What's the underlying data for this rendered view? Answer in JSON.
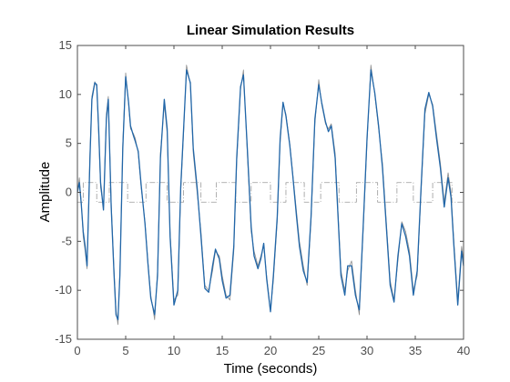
{
  "chart_data": {
    "type": "line",
    "title": "Linear Simulation Results",
    "xlabel": "Time (seconds)",
    "ylabel": "Amplitude",
    "xlim": [
      0,
      40
    ],
    "ylim": [
      -15,
      15
    ],
    "x_ticks": [
      "0",
      "5",
      "10",
      "15",
      "20",
      "25",
      "30",
      "35",
      "40"
    ],
    "y_ticks": [
      "-15",
      "-10",
      "-5",
      "0",
      "5",
      "10",
      "15"
    ],
    "grid": false,
    "legend": "none",
    "colors": {
      "output": "#2166a8",
      "reference": "#8c8c8c",
      "input": "#9a9a9a",
      "axes": "#4d4d4d"
    },
    "series": [
      {
        "role": "input",
        "style": "dash-dot",
        "x": [
          0,
          0.6,
          1.0,
          2.0,
          2.6,
          3.3,
          4.7,
          5.2,
          6.3,
          7.1,
          8.6,
          9.3,
          10.3,
          11.0,
          12.2,
          12.8,
          13.6,
          14.4,
          15.8,
          16.4,
          17.4,
          18.0,
          19.3,
          20.0,
          21.0,
          21.6,
          22.9,
          23.5,
          24.5,
          25.2,
          26.4,
          27.1,
          28.2,
          28.9,
          30.3,
          31.1,
          32.3,
          33.1,
          34.1,
          34.8,
          36.1,
          36.8,
          38.1,
          38.8,
          40
        ],
        "y": [
          -1,
          1,
          1,
          -1,
          -1,
          1,
          1,
          -1,
          -1,
          1,
          1,
          -1,
          -1,
          1,
          1,
          -1,
          -1,
          1,
          1,
          -1,
          -1,
          1,
          1,
          -1,
          -1,
          1,
          1,
          -1,
          -1,
          1,
          1,
          -1,
          -1,
          1,
          1,
          -1,
          -1,
          1,
          1,
          -1,
          -1,
          1,
          1,
          -1,
          -1
        ]
      },
      {
        "role": "reference",
        "style": "solid",
        "x": [
          0,
          0.2,
          0.4,
          0.6,
          0.8,
          1.0,
          1.3,
          1.5,
          1.8,
          2.0,
          2.2,
          2.4,
          2.7,
          3.0,
          3.2,
          3.5,
          3.8,
          4.0,
          4.2,
          4.4,
          4.7,
          5.0,
          5.3,
          5.5,
          5.8,
          6.0,
          6.3,
          6.6,
          7.0,
          7.3,
          7.6,
          8.0,
          8.3,
          8.6,
          9.0,
          9.3,
          9.6,
          10.0,
          10.4,
          10.7,
          11.0,
          11.3,
          11.7,
          12.0,
          12.4,
          12.8,
          13.2,
          13.6,
          14.0,
          14.3,
          14.7,
          15.0,
          15.4,
          15.8,
          16.2,
          16.5,
          16.9,
          17.2,
          17.6,
          18.0,
          18.3,
          18.7,
          19.0,
          19.3,
          19.6,
          20.0,
          20.3,
          20.7,
          21.0,
          21.3,
          21.6,
          22.0,
          22.3,
          22.7,
          23.0,
          23.4,
          23.8,
          24.2,
          24.6,
          25.0,
          25.3,
          25.7,
          26.0,
          26.3,
          26.7,
          27.0,
          27.3,
          27.7,
          28.0,
          28.4,
          28.8,
          29.2,
          29.6,
          30.0,
          30.4,
          30.8,
          31.2,
          31.6,
          32.0,
          32.4,
          32.8,
          33.2,
          33.6,
          34.0,
          34.4,
          34.8,
          35.2,
          35.6,
          36.0,
          36.4,
          36.8,
          37.2,
          37.6,
          38.0,
          38.4,
          38.7,
          39.0,
          39.4,
          39.8,
          40.0
        ],
        "y": [
          0,
          1.5,
          -1.0,
          -4.5,
          -6.0,
          -7.8,
          4.0,
          9.8,
          11.3,
          10.8,
          6.0,
          0.5,
          -1.5,
          8.0,
          9.8,
          -1.0,
          -8.0,
          -12.0,
          -13.5,
          -8.0,
          5.0,
          12.2,
          9.0,
          6.5,
          6.0,
          5.5,
          4.0,
          0.5,
          -3.0,
          -7.0,
          -10.5,
          -13.0,
          -8.0,
          4.0,
          9.0,
          6.0,
          -4.0,
          -11.0,
          -10.5,
          0.0,
          6.0,
          13.0,
          11.0,
          4.0,
          0.0,
          -4.0,
          -9.5,
          -10.0,
          -8.0,
          -6.0,
          -6.5,
          -8.5,
          -10.5,
          -11.0,
          -6.0,
          3.0,
          10.5,
          12.5,
          4.0,
          -4.0,
          -6.0,
          -7.5,
          -6.5,
          -5.5,
          -8.5,
          -12.0,
          -9.0,
          -3.0,
          5.0,
          9.0,
          8.0,
          5.0,
          2.0,
          -2.0,
          -5.0,
          -7.5,
          -9.5,
          -3.0,
          7.0,
          11.5,
          9.0,
          7.0,
          6.5,
          7.0,
          4.0,
          -2.0,
          -8.0,
          -10.0,
          -8.0,
          -7.0,
          -10.0,
          -12.5,
          -4.0,
          5.0,
          13.0,
          10.0,
          6.5,
          3.0,
          -3.0,
          -9.0,
          -11.0,
          -7.0,
          -3.0,
          -4.0,
          -6.0,
          -10.0,
          -8.5,
          0.0,
          8.0,
          10.0,
          9.0,
          6.0,
          3.0,
          -1.0,
          2.0,
          0.0,
          -5.0,
          -11.0,
          -5.5,
          -7.0
        ]
      },
      {
        "role": "output",
        "style": "solid",
        "x": [
          0,
          0.2,
          0.4,
          0.6,
          0.8,
          1.0,
          1.3,
          1.5,
          1.8,
          2.0,
          2.2,
          2.4,
          2.7,
          3.0,
          3.2,
          3.5,
          3.8,
          4.0,
          4.2,
          4.4,
          4.7,
          5.0,
          5.3,
          5.5,
          5.8,
          6.0,
          6.3,
          6.6,
          7.0,
          7.3,
          7.6,
          8.0,
          8.3,
          8.6,
          9.0,
          9.3,
          9.6,
          10.0,
          10.4,
          10.7,
          11.0,
          11.3,
          11.7,
          12.0,
          12.4,
          12.8,
          13.2,
          13.6,
          14.0,
          14.3,
          14.7,
          15.0,
          15.4,
          15.8,
          16.2,
          16.5,
          16.9,
          17.2,
          17.6,
          18.0,
          18.3,
          18.7,
          19.0,
          19.3,
          19.6,
          20.0,
          20.3,
          20.7,
          21.0,
          21.3,
          21.6,
          22.0,
          22.3,
          22.7,
          23.0,
          23.4,
          23.8,
          24.2,
          24.6,
          25.0,
          25.3,
          25.7,
          26.0,
          26.3,
          26.7,
          27.0,
          27.3,
          27.7,
          28.0,
          28.4,
          28.8,
          29.2,
          29.6,
          30.0,
          30.4,
          30.8,
          31.2,
          31.6,
          32.0,
          32.4,
          32.8,
          33.2,
          33.6,
          34.0,
          34.4,
          34.8,
          35.2,
          35.6,
          36.0,
          36.4,
          36.8,
          37.2,
          37.6,
          38.0,
          38.4,
          38.7,
          39.0,
          39.4,
          39.8,
          40.0
        ],
        "y": [
          0,
          1.0,
          -1.2,
          -4.0,
          -5.5,
          -7.5,
          3.5,
          9.5,
          11.2,
          11.0,
          6.5,
          1.0,
          -1.8,
          7.5,
          9.5,
          -1.5,
          -8.5,
          -12.5,
          -13.0,
          -8.5,
          4.5,
          11.8,
          9.2,
          6.8,
          5.8,
          5.2,
          4.2,
          0.8,
          -3.2,
          -7.2,
          -10.8,
          -12.5,
          -8.5,
          3.5,
          9.5,
          6.5,
          -4.5,
          -11.5,
          -10.0,
          0.5,
          6.5,
          12.5,
          11.2,
          4.5,
          0.5,
          -4.5,
          -9.8,
          -10.2,
          -7.5,
          -5.8,
          -6.8,
          -9.0,
          -10.8,
          -10.5,
          -5.5,
          3.5,
          10.8,
          12.0,
          4.5,
          -3.5,
          -6.5,
          -7.8,
          -6.8,
          -5.2,
          -8.8,
          -12.2,
          -8.5,
          -2.5,
          5.5,
          9.2,
          7.8,
          4.8,
          1.8,
          -2.5,
          -5.5,
          -8.0,
          -9.2,
          -2.5,
          7.5,
          11.0,
          9.2,
          7.2,
          6.2,
          6.8,
          3.5,
          -2.5,
          -8.5,
          -10.5,
          -7.5,
          -7.5,
          -10.5,
          -12.0,
          -3.5,
          5.5,
          12.5,
          10.2,
          6.8,
          2.5,
          -3.5,
          -9.5,
          -11.2,
          -6.5,
          -3.2,
          -4.5,
          -6.5,
          -10.5,
          -8.0,
          0.5,
          8.5,
          10.2,
          8.8,
          5.5,
          2.5,
          -1.5,
          1.5,
          -0.5,
          -5.5,
          -11.5,
          -6.0,
          -7.5
        ]
      }
    ]
  }
}
